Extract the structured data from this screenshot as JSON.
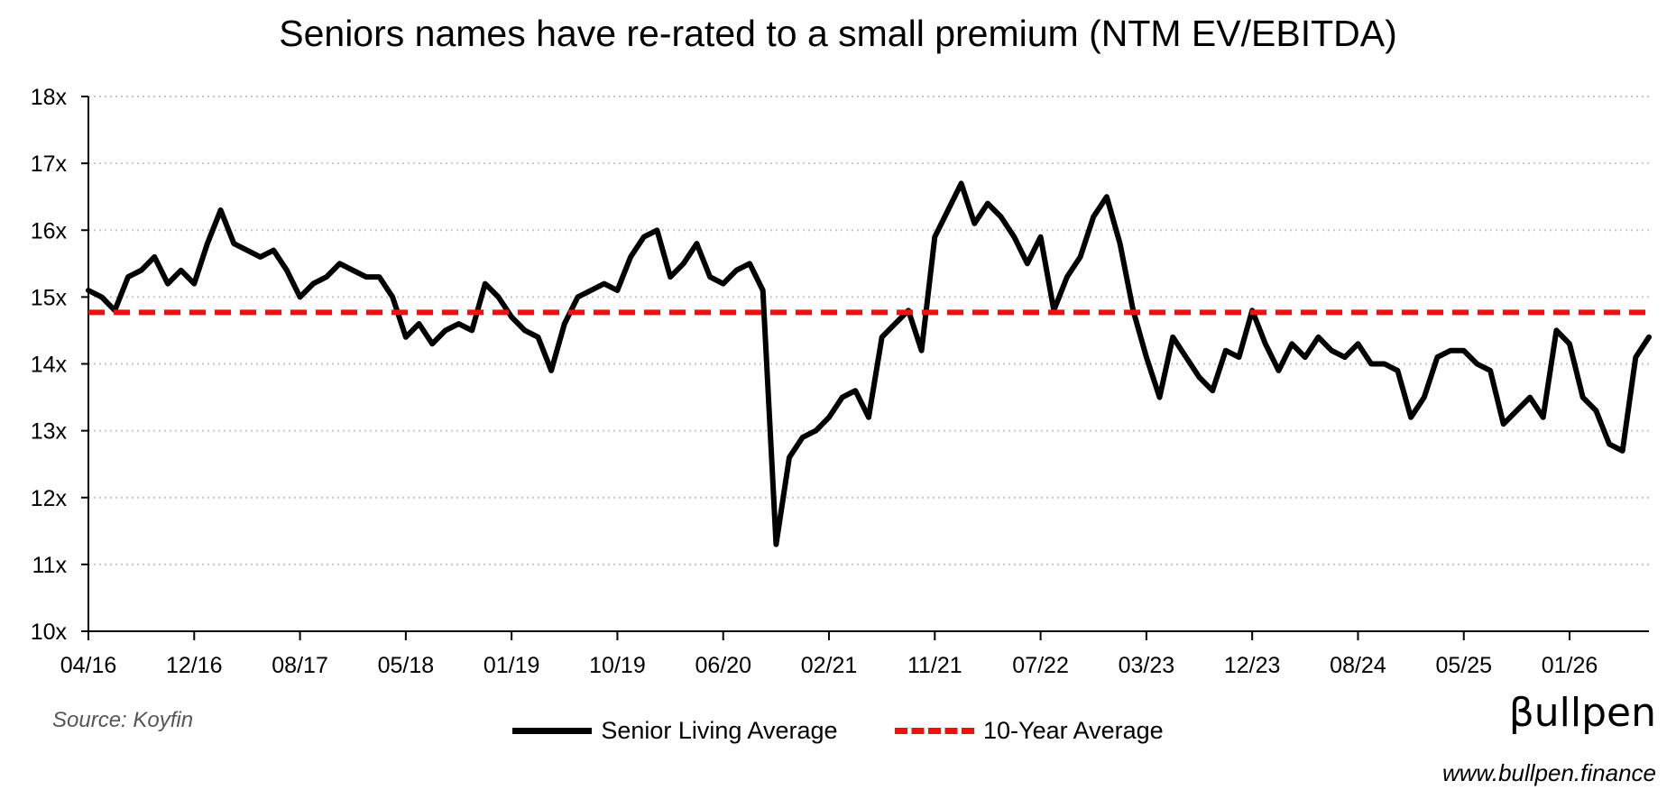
{
  "chart_data": {
    "type": "line",
    "title": "Seniors names have re-rated to a small premium (NTM EV/EBITDA)",
    "xlabel": "",
    "ylabel": "",
    "ylim": [
      10,
      18
    ],
    "y_ticks": [
      10,
      11,
      12,
      13,
      14,
      15,
      16,
      17,
      18
    ],
    "y_tick_labels": [
      "10x",
      "11x",
      "12x",
      "13x",
      "14x",
      "15x",
      "16x",
      "17x",
      "18x"
    ],
    "x_range": [
      0,
      118
    ],
    "x_ticks": [
      0,
      8,
      16,
      24,
      32,
      40,
      48,
      56,
      64,
      72,
      80,
      88,
      96,
      104,
      112
    ],
    "x_tick_labels": [
      "04/16",
      "12/16",
      "08/17",
      "05/18",
      "01/19",
      "10/19",
      "06/20",
      "02/21",
      "11/21",
      "07/22",
      "03/23",
      "12/23",
      "08/24",
      "05/25",
      "01/26"
    ],
    "grid": "horizontal dotted",
    "legend_position": "bottom-center",
    "series": [
      {
        "name": "Senior Living Average",
        "color": "#000000",
        "style": "solid",
        "x": [
          0,
          1,
          2,
          3,
          4,
          5,
          6,
          7,
          8,
          9,
          10,
          11,
          12,
          13,
          14,
          15,
          16,
          17,
          18,
          19,
          20,
          21,
          22,
          23,
          24,
          25,
          26,
          27,
          28,
          29,
          30,
          31,
          32,
          33,
          34,
          35,
          36,
          37,
          38,
          39,
          40,
          41,
          42,
          43,
          44,
          45,
          46,
          47,
          48,
          49,
          50,
          51,
          52,
          53,
          54,
          55,
          56,
          57,
          58,
          59,
          60,
          61,
          62,
          63,
          64,
          65,
          66,
          67,
          68,
          69,
          70,
          71,
          72,
          73,
          74,
          75,
          76,
          77,
          78,
          79,
          80,
          81,
          82,
          83,
          84,
          85,
          86,
          87,
          88,
          89,
          90,
          91,
          92,
          93,
          94,
          95,
          96,
          97,
          98,
          99,
          100,
          101,
          102,
          103,
          104,
          105,
          106,
          107,
          108,
          109,
          110,
          111,
          112,
          113,
          114,
          115,
          116,
          117,
          118
        ],
        "values": [
          15.1,
          15.0,
          14.8,
          15.3,
          15.4,
          15.6,
          15.2,
          15.4,
          15.2,
          15.8,
          16.3,
          15.8,
          15.7,
          15.6,
          15.7,
          15.4,
          15.0,
          15.2,
          15.3,
          15.5,
          15.4,
          15.3,
          15.3,
          15.0,
          14.4,
          14.6,
          14.3,
          14.5,
          14.6,
          14.5,
          15.2,
          15.0,
          14.7,
          14.5,
          14.4,
          13.9,
          14.6,
          15.0,
          15.1,
          15.2,
          15.1,
          15.6,
          15.9,
          16.0,
          15.3,
          15.5,
          15.8,
          15.3,
          15.2,
          15.4,
          15.5,
          15.1,
          11.3,
          12.6,
          12.9,
          13.0,
          13.2,
          13.5,
          13.6,
          13.2,
          14.4,
          14.6,
          14.8,
          14.2,
          15.9,
          16.3,
          16.7,
          16.1,
          16.4,
          16.2,
          15.9,
          15.5,
          15.9,
          14.8,
          15.3,
          15.6,
          16.2,
          16.5,
          15.8,
          14.8,
          14.1,
          13.5,
          14.4,
          14.1,
          13.8,
          13.6,
          14.2,
          14.1,
          14.8,
          14.3,
          13.9,
          14.3,
          14.1,
          14.4,
          14.2,
          14.1,
          14.3,
          14.0,
          14.0,
          13.9,
          13.2,
          13.5,
          14.1,
          14.2,
          14.2,
          14.0,
          13.9,
          13.1,
          13.3,
          13.5,
          13.2,
          14.5,
          14.3,
          13.5,
          13.3,
          12.8,
          12.7,
          14.1,
          14.4
        ],
        "__unused": null
      },
      {
        "name": "10-Year Average",
        "color": "#ee1111",
        "style": "dashed",
        "values": [
          14.77,
          14.77
        ]
      }
    ]
  },
  "source": "Source: Koyfin",
  "brand": {
    "name": "βullpen",
    "url": "www.bullpen.finance"
  }
}
